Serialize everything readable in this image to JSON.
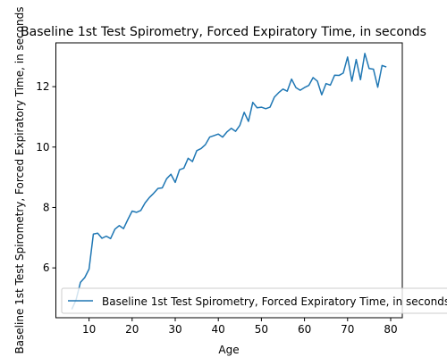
{
  "chart_data": {
    "type": "line",
    "title": "Baseline 1st Test Spirometry, Forced Expiratory Time, in seconds",
    "xlabel": "Age",
    "ylabel": "Baseline 1st Test Spirometry, Forced Expiratory Time, in seconds",
    "xlim": [
      2.3,
      82.7
    ],
    "ylim": [
      4.35,
      13.45
    ],
    "xticks": [
      10,
      20,
      30,
      40,
      50,
      60,
      70,
      80
    ],
    "yticks": [
      6,
      8,
      10,
      12
    ],
    "xtick_labels": [
      "10",
      "20",
      "30",
      "40",
      "50",
      "60",
      "70",
      "80"
    ],
    "ytick_labels": [
      "6",
      "8",
      "10",
      "12"
    ],
    "grid": false,
    "legend_position": "lower right",
    "series": [
      {
        "name": "Baseline 1st Test Spirometry, Forced Expiratory Time, in seconds",
        "color": "#1f77b4",
        "x": [
          6,
          7,
          8,
          9,
          10,
          11,
          12,
          13,
          14,
          15,
          16,
          17,
          18,
          19,
          20,
          21,
          22,
          23,
          24,
          25,
          26,
          27,
          28,
          29,
          30,
          31,
          32,
          33,
          34,
          35,
          36,
          37,
          38,
          39,
          40,
          41,
          42,
          43,
          44,
          45,
          46,
          47,
          48,
          49,
          50,
          51,
          52,
          53,
          54,
          55,
          56,
          57,
          58,
          59,
          60,
          61,
          62,
          63,
          64,
          65,
          66,
          67,
          68,
          69,
          70,
          71,
          72,
          73,
          74,
          75,
          76,
          77,
          78,
          79
        ],
        "y": [
          4.63,
          4.95,
          5.52,
          5.68,
          5.96,
          7.12,
          7.15,
          6.98,
          7.05,
          6.97,
          7.28,
          7.4,
          7.3,
          7.6,
          7.88,
          7.84,
          7.9,
          8.15,
          8.33,
          8.47,
          8.63,
          8.65,
          8.95,
          9.1,
          8.83,
          9.25,
          9.3,
          9.63,
          9.52,
          9.88,
          9.95,
          10.08,
          10.33,
          10.38,
          10.43,
          10.33,
          10.5,
          10.62,
          10.52,
          10.72,
          11.15,
          10.85,
          11.48,
          11.3,
          11.32,
          11.27,
          11.32,
          11.65,
          11.8,
          11.92,
          11.85,
          12.25,
          11.97,
          11.88,
          11.97,
          12.04,
          12.3,
          12.18,
          11.73,
          12.1,
          12.05,
          12.38,
          12.37,
          12.45,
          12.98,
          12.18,
          12.9,
          12.23,
          13.1,
          12.6,
          12.58,
          11.98,
          12.7,
          12.65
        ]
      }
    ]
  }
}
